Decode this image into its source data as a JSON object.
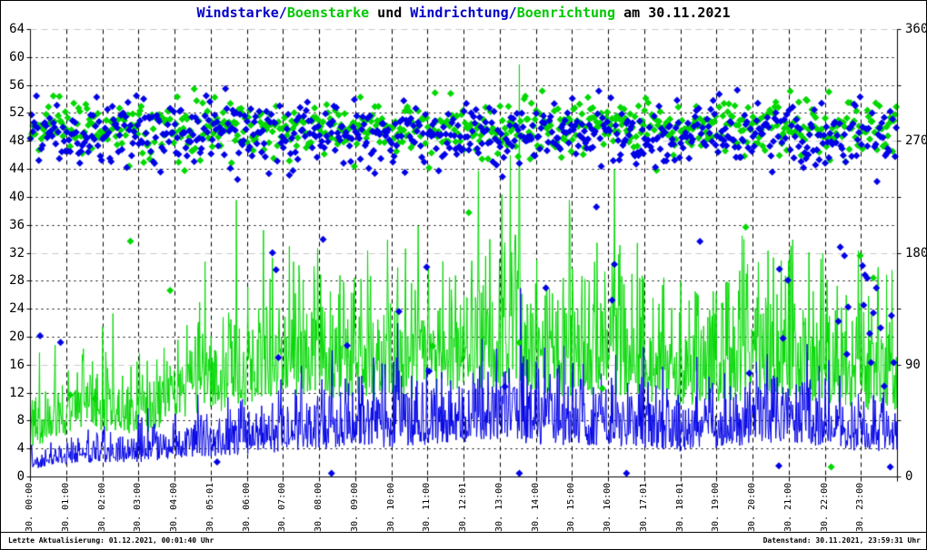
{
  "title": {
    "full": "Windstarke/Boenstarke und Windrichtung/Boenrichtung am 30.11.2021",
    "segments": [
      {
        "text": "Windstarke/",
        "color": "#0000c8"
      },
      {
        "text": "Boenstarke",
        "color": "#00c800"
      },
      {
        "text": " und ",
        "color": "#000000"
      },
      {
        "text": "Windrichtung/",
        "color": "#0000c8"
      },
      {
        "text": "Boenrichtung",
        "color": "#00c800"
      },
      {
        "text": " am 30.11.2021",
        "color": "#000000"
      }
    ]
  },
  "axes": {
    "y_left_labels": [
      "64",
      "60",
      "56",
      "52",
      "48",
      "44",
      "40",
      "36",
      "32",
      "28",
      "24",
      "20",
      "16",
      "12",
      "8",
      "4",
      "0"
    ],
    "y_right_labels": [
      "360",
      "270",
      "180",
      "90",
      "0"
    ],
    "x_labels": [
      "30. 00:00",
      "30. 01:00",
      "30. 02:00",
      "30. 03:00",
      "30. 04:00",
      "30. 05:01",
      "30. 06:00",
      "30. 07:00",
      "30. 08:00",
      "30. 09:00",
      "30. 10:00",
      "30. 11:00",
      "30. 12:01",
      "30. 13:00",
      "30. 14:00",
      "30. 15:00",
      "30. 16:00",
      "30. 17:01",
      "30. 18:01",
      "30. 19:00",
      "30. 20:00",
      "30. 21:00",
      "30. 22:00",
      "30. 23:00"
    ]
  },
  "status": {
    "left": "Letzte Aktualisierung: 01.12.2021, 00:01:40 Uhr",
    "right": "Datenstand: 30.11.2021, 23:59:31 Uhr"
  },
  "colors": {
    "wind_blue": "#0000e6",
    "gust_green": "#00d800",
    "grid_minor": "#000000",
    "grid_major": "#c8c8c8",
    "axis": "#000000"
  },
  "chart_data": {
    "type": "mixed",
    "title": "Windstarke/Boenstarke und Windrichtung/Boenrichtung am 30.11.2021",
    "y_left": {
      "min": 0,
      "max": 64,
      "step": 4
    },
    "y_right": {
      "min": 0,
      "max": 360,
      "label_step": 90,
      "tick_step": 45
    },
    "x": {
      "unit": "minute_of_day",
      "min": 0,
      "max": 1440,
      "hour_grid": true
    },
    "seed": 20211130,
    "noise": {
      "wind_base": 0.45,
      "wind_amp": 0.5,
      "gust_base": 0.6,
      "gust_amp": 0.5
    },
    "series": [
      {
        "id": "windstarke",
        "name": "Windstarke",
        "type": "line",
        "color": "#0000e6",
        "hourly_mean": [
          2.5,
          4,
          4.5,
          4.5,
          6,
          6.5,
          7,
          8,
          9,
          9,
          9.5,
          10,
          11,
          12,
          10,
          10,
          10,
          9,
          8,
          9,
          10,
          11,
          9.5,
          8
        ]
      },
      {
        "id": "boenstarke",
        "name": "Boenstarke",
        "type": "line",
        "color": "#00d800",
        "hourly_mean": [
          7,
          10,
          11,
          10,
          13,
          15,
          17,
          20,
          19,
          18,
          18,
          19,
          20,
          21,
          19,
          19,
          20,
          18,
          16,
          17,
          18,
          19,
          17,
          16
        ]
      },
      {
        "id": "windrichtung",
        "name": "Windrichtung",
        "type": "scatter",
        "color": "#0000e6",
        "mean_deg": 276,
        "sigma_deg": 13,
        "sample_step_min": 2,
        "outlier_rate": 0.03,
        "outlier_min_deg": 60,
        "outlier_max_deg": 230,
        "late": {
          "from": 1340,
          "rate": 0.22,
          "min_deg": 80,
          "max_deg": 195
        }
      },
      {
        "id": "boenrichtung",
        "name": "Boenrichtung",
        "type": "scatter",
        "color": "#00d800",
        "mean_deg": 281,
        "sigma_deg": 11,
        "sample_step_min": 2,
        "outlier_rate": 0.012,
        "outlier_min_deg": 60,
        "outlier_max_deg": 230
      }
    ],
    "spikes": [
      {
        "series": "boenstarke",
        "minute": 281,
        "value": 25
      },
      {
        "series": "boenstarke",
        "minute": 430,
        "value": 33
      },
      {
        "series": "boenstarke",
        "minute": 797,
        "value": 46
      },
      {
        "series": "boenstarke",
        "minute": 812,
        "value": 59
      },
      {
        "series": "boenstarke",
        "minute": 970,
        "value": 44
      },
      {
        "series": "boenstarke",
        "minute": 1185,
        "value": 34
      },
      {
        "series": "boenstarke",
        "minute": 1408,
        "value": 30
      },
      {
        "series": "windstarke",
        "minute": 610,
        "value": 22
      },
      {
        "series": "windstarke",
        "minute": 814,
        "value": 27
      },
      {
        "series": "windstarke",
        "minute": 1290,
        "value": 19
      }
    ],
    "outliers": [
      {
        "series": "windrichtung",
        "minute": 310,
        "deg": 12
      },
      {
        "series": "windrichtung",
        "minute": 500,
        "deg": 3
      },
      {
        "series": "windrichtung",
        "minute": 812,
        "deg": 3
      },
      {
        "series": "windrichtung",
        "minute": 990,
        "deg": 3
      },
      {
        "series": "windrichtung",
        "minute": 1243,
        "deg": 9
      },
      {
        "series": "windrichtung",
        "minute": 1345,
        "deg": 185
      },
      {
        "series": "windrichtung",
        "minute": 1352,
        "deg": 178
      },
      {
        "series": "windrichtung",
        "minute": 1382,
        "deg": 170
      },
      {
        "series": "windrichtung",
        "minute": 1390,
        "deg": 160
      },
      {
        "series": "windrichtung",
        "minute": 1405,
        "deg": 152
      },
      {
        "series": "windrichtung",
        "minute": 1412,
        "deg": 120
      },
      {
        "series": "windrichtung",
        "minute": 1418,
        "deg": 73
      },
      {
        "series": "windrichtung",
        "minute": 1428,
        "deg": 8
      },
      {
        "series": "boenrichtung",
        "minute": 66,
        "deg": 66
      },
      {
        "series": "boenrichtung",
        "minute": 107,
        "deg": 63
      },
      {
        "series": "boenrichtung",
        "minute": 232,
        "deg": 150
      },
      {
        "series": "boenrichtung",
        "minute": 1330,
        "deg": 8
      },
      {
        "series": "boenrichtung",
        "minute": 1378,
        "deg": 178
      }
    ]
  }
}
